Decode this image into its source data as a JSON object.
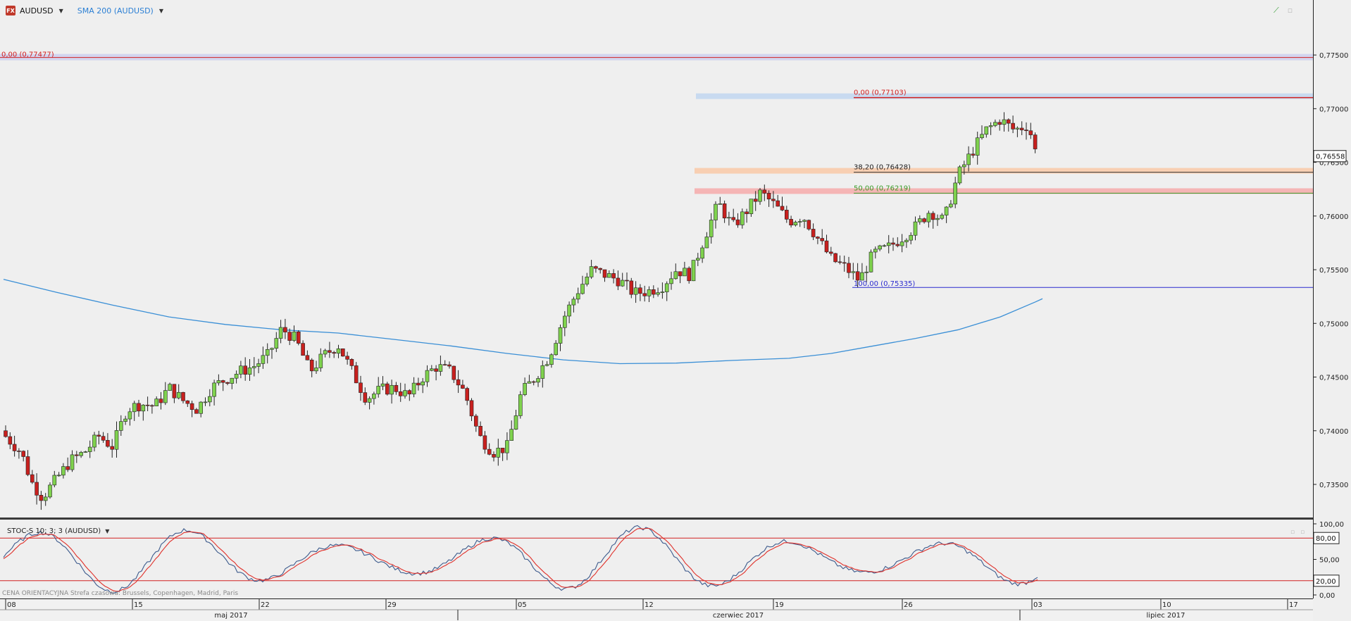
{
  "header": {
    "symbol": "AUDUSD",
    "indicator": "SMA 200 (AUDUSD)",
    "fx_badge": "FX"
  },
  "oscillator": {
    "label": "STOC-S 10; 3; 3 (AUDUSD)"
  },
  "footer_info": "CENA ORIENTACYJNA   Strefa czasowa: Brussels, Copenhagen, Madrid, Paris",
  "colors": {
    "bull": "#7fd24e",
    "bear": "#c8201e",
    "sma": "#3a8fd6",
    "stoch_k": "#3c5a8c",
    "stoch_d": "#e0302a",
    "fib_red": "#d22020",
    "fib_green": "#3a9a28",
    "fib_blue": "#2a2acf"
  },
  "chart_data": {
    "type": "candlestick",
    "price_axis": {
      "ticks": [
        "0,77500",
        "0,77000",
        "0,76500",
        "0,76000",
        "0,75500",
        "0,75000",
        "0,74500",
        "0,74000",
        "0,73500"
      ],
      "range": [
        0.7325,
        0.776
      ],
      "current_price": "0,76558"
    },
    "x_axis": {
      "day_ticks": [
        "08",
        "15",
        "22",
        "29",
        "05",
        "12",
        "19",
        "26",
        "03",
        "10",
        "17"
      ],
      "month_labels": [
        "maj 2017",
        "czerwiec 2017",
        "lipiec 2017"
      ]
    },
    "fibonacci_levels": [
      {
        "label": "0,00 (0,77477)",
        "value": 0.77477,
        "color": "red"
      },
      {
        "label": "0,00 (0,77103)",
        "value": 0.77103,
        "color": "red"
      },
      {
        "label": "38,20 (0,76428)",
        "value": 0.76428,
        "color": "black"
      },
      {
        "label": "50,00 (0,76219)",
        "value": 0.76219,
        "color": "green"
      },
      {
        "label": "100,00 (0,75335)",
        "value": 0.75335,
        "color": "blue"
      }
    ],
    "stochastic_axis": {
      "ticks": [
        "100,00",
        "50,00",
        "0,00"
      ],
      "levels": [
        "80,00",
        "20,00"
      ]
    }
  }
}
